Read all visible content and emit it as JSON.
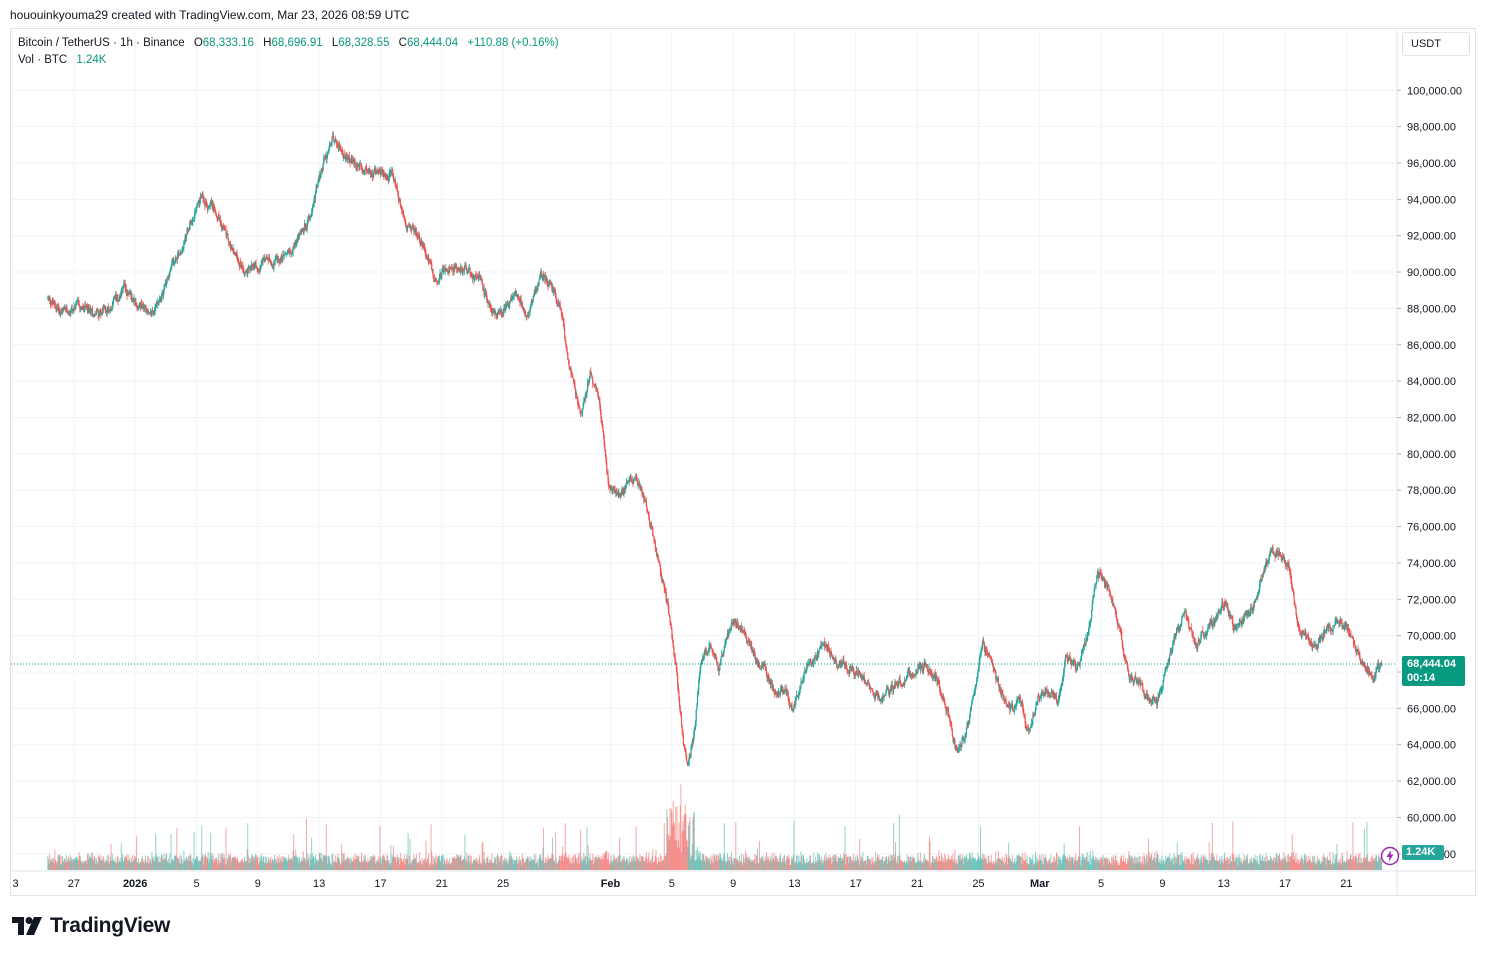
{
  "header": {
    "credit": "hououinkyouma29 created with TradingView.com, Mar 23, 2026 08:59 UTC"
  },
  "legend": {
    "symbol": "Bitcoin / TetherUS · 1h · Binance",
    "open_label": "O",
    "open": "68,333.16",
    "high_label": "H",
    "high": "68,696.91",
    "low_label": "L",
    "low": "68,328.55",
    "close_label": "C",
    "close": "68,444.04",
    "change": "+110.88 (+0.16%)",
    "vol_label": "Vol · BTC",
    "vol_value": "1.24K"
  },
  "currency_button": "USDT",
  "last_price": {
    "value": "68,444.04",
    "countdown": "00:14"
  },
  "volume_tag": "1.24K",
  "brand": {
    "name": "TradingView"
  },
  "colors": {
    "up": "#26a69a",
    "down": "#ef5350",
    "price_tag": "#089981",
    "grid": "#f0f3fa",
    "text": "#131722"
  },
  "chart_data": {
    "type": "candlestick",
    "interval": "1h",
    "ylim": [
      57000,
      101000
    ],
    "y_ticks": [
      "100,000.00",
      "98,000.00",
      "96,000.00",
      "94,000.00",
      "92,000.00",
      "90,000.00",
      "88,000.00",
      "86,000.00",
      "84,000.00",
      "82,000.00",
      "80,000.00",
      "78,000.00",
      "76,000.00",
      "74,000.00",
      "72,000.00",
      "70,000.00",
      "68,000.00",
      "66,000.00",
      "64,000.00",
      "62,000.00",
      "60,000.00",
      "58,000.00"
    ],
    "x_ticks": [
      {
        "label": "3",
        "t": -2.3
      },
      {
        "label": "27",
        "t": 1.7
      },
      {
        "label": "2026",
        "t": 5.7
      },
      {
        "label": "5",
        "t": 9.7
      },
      {
        "label": "9",
        "t": 13.7
      },
      {
        "label": "13",
        "t": 17.7
      },
      {
        "label": "17",
        "t": 21.7
      },
      {
        "label": "21",
        "t": 25.7
      },
      {
        "label": "25",
        "t": 29.7
      },
      {
        "label": "Feb",
        "t": 36.7
      },
      {
        "label": "5",
        "t": 40.7
      },
      {
        "label": "9",
        "t": 44.7
      },
      {
        "label": "13",
        "t": 48.7
      },
      {
        "label": "17",
        "t": 52.7
      },
      {
        "label": "21",
        "t": 56.7
      },
      {
        "label": "25",
        "t": 60.7
      },
      {
        "label": "Mar",
        "t": 64.7
      },
      {
        "label": "5",
        "t": 68.7
      },
      {
        "label": "9",
        "t": 72.7
      },
      {
        "label": "13",
        "t": 76.7
      },
      {
        "label": "17",
        "t": 80.7
      },
      {
        "label": "21",
        "t": 84.7
      }
    ],
    "t_range": [
      -2.4,
      88.0
    ],
    "price_path": [
      [
        0.0,
        88600
      ],
      [
        1.0,
        87700
      ],
      [
        2.0,
        88100
      ],
      [
        3.0,
        87700
      ],
      [
        4.0,
        88000
      ],
      [
        5.0,
        89100
      ],
      [
        6.0,
        88200
      ],
      [
        7.0,
        87800
      ],
      [
        8.0,
        90000
      ],
      [
        9.0,
        91800
      ],
      [
        10.0,
        94100
      ],
      [
        11.0,
        93500
      ],
      [
        12.0,
        91300
      ],
      [
        13.0,
        90000
      ],
      [
        14.0,
        90600
      ],
      [
        15.0,
        90500
      ],
      [
        16.0,
        91400
      ],
      [
        17.0,
        92800
      ],
      [
        18.0,
        95900
      ],
      [
        18.6,
        97500
      ],
      [
        19.5,
        96200
      ],
      [
        21.0,
        95500
      ],
      [
        22.5,
        95300
      ],
      [
        23.3,
        92800
      ],
      [
        24.5,
        91600
      ],
      [
        25.3,
        89500
      ],
      [
        26.0,
        90300
      ],
      [
        27.0,
        90200
      ],
      [
        28.2,
        89500
      ],
      [
        29.0,
        87800
      ],
      [
        29.6,
        87700
      ],
      [
        30.7,
        88900
      ],
      [
        31.3,
        87500
      ],
      [
        32.2,
        89800
      ],
      [
        32.8,
        89300
      ],
      [
        33.4,
        88200
      ],
      [
        34.2,
        84200
      ],
      [
        34.8,
        82000
      ],
      [
        35.4,
        84500
      ],
      [
        36.0,
        83200
      ],
      [
        36.6,
        78500
      ],
      [
        37.3,
        77800
      ],
      [
        38.2,
        78600
      ],
      [
        38.8,
        77900
      ],
      [
        39.4,
        75800
      ],
      [
        40.1,
        73000
      ],
      [
        40.5,
        71500
      ],
      [
        41.0,
        68500
      ],
      [
        41.5,
        64000
      ],
      [
        41.8,
        63000
      ],
      [
        42.2,
        64500
      ],
      [
        42.6,
        68500
      ],
      [
        43.3,
        69500
      ],
      [
        43.8,
        68200
      ],
      [
        44.6,
        70700
      ],
      [
        45.3,
        70500
      ],
      [
        46.0,
        69000
      ],
      [
        46.8,
        68000
      ],
      [
        47.5,
        66800
      ],
      [
        48.1,
        67000
      ],
      [
        48.7,
        66000
      ],
      [
        49.3,
        67900
      ],
      [
        50.0,
        68800
      ],
      [
        50.8,
        69500
      ],
      [
        51.5,
        68500
      ],
      [
        52.4,
        68200
      ],
      [
        53.4,
        67500
      ],
      [
        54.3,
        66500
      ],
      [
        55.2,
        67200
      ],
      [
        56.3,
        67900
      ],
      [
        57.2,
        68400
      ],
      [
        58.0,
        67600
      ],
      [
        58.7,
        66000
      ],
      [
        59.3,
        63500
      ],
      [
        59.9,
        64600
      ],
      [
        60.5,
        66800
      ],
      [
        61.0,
        69600
      ],
      [
        61.6,
        68300
      ],
      [
        62.2,
        66900
      ],
      [
        62.8,
        65800
      ],
      [
        63.5,
        66500
      ],
      [
        64.0,
        64500
      ],
      [
        64.6,
        66600
      ],
      [
        65.3,
        67000
      ],
      [
        65.9,
        66300
      ],
      [
        66.5,
        69000
      ],
      [
        67.2,
        68200
      ],
      [
        67.9,
        70100
      ],
      [
        68.5,
        73600
      ],
      [
        69.2,
        72700
      ],
      [
        69.9,
        70600
      ],
      [
        70.5,
        67800
      ],
      [
        71.1,
        67500
      ],
      [
        71.8,
        66500
      ],
      [
        72.4,
        66300
      ],
      [
        73.0,
        68200
      ],
      [
        73.6,
        70100
      ],
      [
        74.2,
        71200
      ],
      [
        74.9,
        69500
      ],
      [
        75.6,
        70200
      ],
      [
        76.2,
        70800
      ],
      [
        76.8,
        71900
      ],
      [
        77.4,
        70500
      ],
      [
        78.0,
        70900
      ],
      [
        78.6,
        71400
      ],
      [
        79.2,
        73200
      ],
      [
        79.8,
        74700
      ],
      [
        80.4,
        74500
      ],
      [
        81.0,
        73800
      ],
      [
        81.6,
        70500
      ],
      [
        82.2,
        70000
      ],
      [
        82.8,
        69400
      ],
      [
        83.4,
        70300
      ],
      [
        84.1,
        70700
      ],
      [
        84.7,
        70500
      ],
      [
        85.3,
        69400
      ],
      [
        85.9,
        68400
      ],
      [
        86.5,
        67700
      ],
      [
        87.0,
        68444
      ]
    ],
    "last_close": 68444.04
  }
}
